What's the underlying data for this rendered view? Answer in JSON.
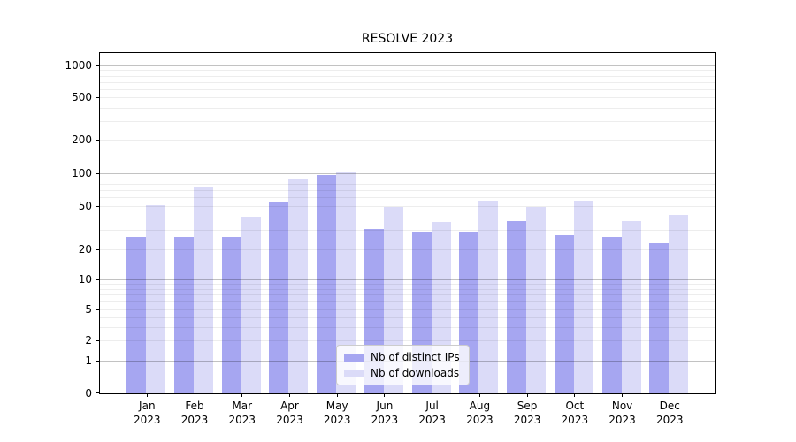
{
  "chart_data": {
    "type": "bar",
    "title": "RESOLVE 2023",
    "scale": "symlog",
    "grid": true,
    "legend_position": "lower center",
    "year": "2023",
    "categories": [
      "Jan",
      "Feb",
      "Mar",
      "Apr",
      "May",
      "Jun",
      "Jul",
      "Aug",
      "Sep",
      "Oct",
      "Nov",
      "Dec"
    ],
    "series": [
      {
        "name": "Nb of distinct IPs",
        "color": "#a6a6f1",
        "values": [
          26,
          26,
          26,
          55,
          97,
          31,
          29,
          29,
          37,
          27,
          26,
          23
        ]
      },
      {
        "name": "Nb of downloads",
        "color": "#dbdbf8",
        "values": [
          51,
          75,
          40,
          91,
          102,
          50,
          36,
          57,
          50,
          57,
          37,
          42
        ]
      }
    ],
    "y_ticks": [
      0,
      1,
      2,
      5,
      10,
      20,
      50,
      100,
      200,
      500,
      1000
    ],
    "ylim": [
      0,
      1300
    ]
  }
}
